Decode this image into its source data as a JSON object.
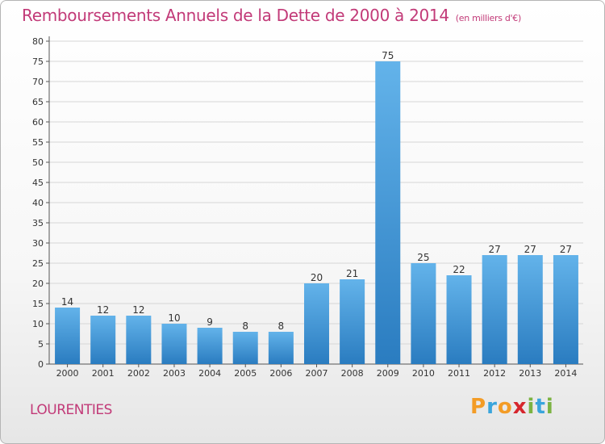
{
  "header": {
    "title": "Remboursements Annuels de la Dette de 2000 à 2014",
    "subtitle": "(en milliers d'€)"
  },
  "footer": {
    "location": "LOURENTIES",
    "brand": {
      "letters": [
        "P",
        "r",
        "o",
        "x",
        "i",
        "t",
        "i"
      ],
      "colors": [
        "#f39c26",
        "#3aa5dc",
        "#f39c26",
        "#d6262d",
        "#7cb342",
        "#3aa5dc",
        "#7cb342"
      ]
    }
  },
  "colors": {
    "bar_light": "#63b3ea",
    "bar_dark": "#2a7cc0",
    "title": "#c23a78",
    "axis": "#555555",
    "grid": "#d6d6d6"
  },
  "chart_data": {
    "type": "bar",
    "categories": [
      "2000",
      "2001",
      "2002",
      "2003",
      "2004",
      "2005",
      "2006",
      "2007",
      "2008",
      "2009",
      "2010",
      "2011",
      "2012",
      "2013",
      "2014"
    ],
    "values": [
      14,
      12,
      12,
      10,
      9,
      8,
      8,
      20,
      21,
      75,
      25,
      22,
      27,
      27,
      27
    ],
    "ylim": [
      0,
      80
    ],
    "yticks": [
      0,
      5,
      10,
      15,
      20,
      25,
      30,
      35,
      40,
      45,
      50,
      55,
      60,
      65,
      70,
      75,
      80
    ],
    "grid": true,
    "data_labels": true
  }
}
